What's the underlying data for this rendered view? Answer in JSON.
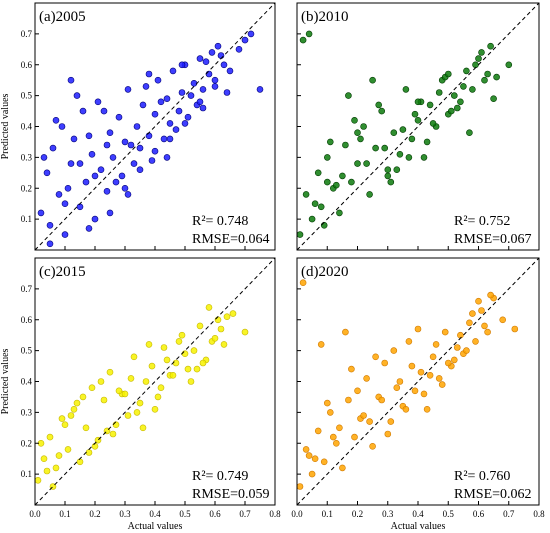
{
  "chart_data": [
    {
      "type": "scatter",
      "panel_label": "(a)2005",
      "xlabel": "",
      "ylabel": "Predicted values",
      "xlim": [
        0,
        0.8
      ],
      "ylim": [
        0,
        0.8
      ],
      "xticks": [
        "0.0",
        "0.1",
        "0.2",
        "0.3",
        "0.4",
        "0.5",
        "0.6",
        "0.7",
        "0.8"
      ],
      "yticks": [
        "0.1",
        "0.2",
        "0.3",
        "0.4",
        "0.5",
        "0.6",
        "0.7"
      ],
      "show_xtick_labels": false,
      "show_yticks": true,
      "color": "#1c1cff",
      "edge_color": "#00007a",
      "r2_text": "R²= 0.748",
      "rmse_text": "RMSE=0.064",
      "series": [
        {
          "x": [
            0.02,
            0.04,
            0.05,
            0.06,
            0.08,
            0.09,
            0.1,
            0.12,
            0.13,
            0.15,
            0.16,
            0.17,
            0.19,
            0.2,
            0.21,
            0.22,
            0.24,
            0.25,
            0.26,
            0.28,
            0.29,
            0.3,
            0.31,
            0.33,
            0.34,
            0.35,
            0.36,
            0.38,
            0.39,
            0.4,
            0.41,
            0.43,
            0.44,
            0.45,
            0.46,
            0.48,
            0.49,
            0.5,
            0.51,
            0.53,
            0.54,
            0.55,
            0.56,
            0.58,
            0.59,
            0.6,
            0.61,
            0.63,
            0.65,
            0.68,
            0.72,
            0.75,
            0.03,
            0.07,
            0.11,
            0.14,
            0.18,
            0.23,
            0.27,
            0.32,
            0.37,
            0.42,
            0.47,
            0.52,
            0.57,
            0.62,
            0.05,
            0.1,
            0.15,
            0.2,
            0.25,
            0.3,
            0.35,
            0.4,
            0.45,
            0.5,
            0.55,
            0.6,
            0.12,
            0.18,
            0.24,
            0.31,
            0.38,
            0.44,
            0.49,
            0.56,
            0.64,
            0.7
          ],
          "y": [
            0.12,
            0.25,
            0.08,
            0.33,
            0.18,
            0.4,
            0.05,
            0.28,
            0.36,
            0.14,
            0.45,
            0.22,
            0.31,
            0.1,
            0.48,
            0.26,
            0.19,
            0.38,
            0.3,
            0.43,
            0.24,
            0.35,
            0.52,
            0.28,
            0.4,
            0.33,
            0.47,
            0.37,
            0.29,
            0.44,
            0.55,
            0.36,
            0.49,
            0.41,
            0.58,
            0.45,
            0.51,
            0.6,
            0.43,
            0.54,
            0.47,
            0.62,
            0.52,
            0.57,
            0.64,
            0.55,
            0.66,
            0.6,
            0.58,
            0.65,
            0.7,
            0.52,
            0.3,
            0.42,
            0.2,
            0.5,
            0.37,
            0.45,
            0.22,
            0.34,
            0.53,
            0.48,
            0.39,
            0.5,
            0.61,
            0.63,
            0.02,
            0.15,
            0.28,
            0.24,
            0.12,
            0.2,
            0.26,
            0.32,
            0.36,
            0.41,
            0.48,
            0.53,
            0.55,
            0.07,
            0.34,
            0.18,
            0.57,
            0.3,
            0.6,
            0.46,
            0.51,
            0.68
          ]
        }
      ]
    },
    {
      "type": "scatter",
      "panel_label": "(b)2010",
      "xlabel": "",
      "ylabel": "",
      "xlim": [
        0,
        0.8
      ],
      "ylim": [
        0,
        0.8
      ],
      "xticks": [
        "0.0",
        "0.1",
        "0.2",
        "0.3",
        "0.4",
        "0.5",
        "0.6",
        "0.7",
        "0.8"
      ],
      "yticks": [
        "0.1",
        "0.2",
        "0.3",
        "0.4",
        "0.5",
        "0.6",
        "0.7"
      ],
      "show_xtick_labels": false,
      "show_yticks": false,
      "color": "#0c7a0c",
      "edge_color": "#023d02",
      "r2_text": "R²= 0.752",
      "rmse_text": "RMSE=0.067",
      "series": [
        {
          "x": [
            0.01,
            0.03,
            0.05,
            0.07,
            0.09,
            0.1,
            0.12,
            0.14,
            0.16,
            0.18,
            0.2,
            0.22,
            0.24,
            0.26,
            0.28,
            0.3,
            0.32,
            0.34,
            0.36,
            0.38,
            0.4,
            0.42,
            0.44,
            0.46,
            0.48,
            0.5,
            0.52,
            0.54,
            0.56,
            0.58,
            0.6,
            0.62,
            0.64,
            0.66,
            0.7,
            0.04,
            0.08,
            0.11,
            0.15,
            0.19,
            0.23,
            0.27,
            0.31,
            0.35,
            0.39,
            0.43,
            0.47,
            0.51,
            0.55,
            0.59,
            0.63,
            0.06,
            0.13,
            0.21,
            0.29,
            0.37,
            0.45,
            0.53,
            0.61,
            0.17,
            0.25,
            0.33,
            0.41,
            0.49,
            0.57,
            0.65,
            0.02,
            0.1,
            0.2,
            0.3,
            0.4,
            0.5
          ],
          "y": [
            0.05,
            0.18,
            0.1,
            0.25,
            0.08,
            0.3,
            0.2,
            0.12,
            0.34,
            0.22,
            0.28,
            0.4,
            0.18,
            0.33,
            0.45,
            0.26,
            0.38,
            0.31,
            0.52,
            0.36,
            0.42,
            0.3,
            0.47,
            0.4,
            0.55,
            0.44,
            0.5,
            0.48,
            0.58,
            0.52,
            0.62,
            0.55,
            0.66,
            0.56,
            0.6,
            0.7,
            0.14,
            0.35,
            0.24,
            0.42,
            0.28,
            0.47,
            0.22,
            0.39,
            0.44,
            0.35,
            0.51,
            0.45,
            0.53,
            0.6,
            0.57,
            0.15,
            0.21,
            0.36,
            0.33,
            0.3,
            0.41,
            0.46,
            0.64,
            0.5,
            0.55,
            0.26,
            0.48,
            0.56,
            0.38,
            0.49,
            0.68,
            0.22,
            0.38,
            0.24,
            0.48,
            0.57
          ],
          "_note": ""
        }
      ]
    },
    {
      "type": "scatter",
      "panel_label": "(c)2015",
      "xlabel": "Actual values",
      "ylabel": "Predicted values",
      "xlim": [
        0,
        0.8
      ],
      "ylim": [
        0,
        0.8
      ],
      "xticks": [
        "0.0",
        "0.1",
        "0.2",
        "0.3",
        "0.4",
        "0.5",
        "0.6",
        "0.7",
        "0.8"
      ],
      "yticks": [
        "0.1",
        "0.2",
        "0.3",
        "0.4",
        "0.5",
        "0.6",
        "0.7"
      ],
      "show_xtick_labels": true,
      "show_yticks": true,
      "color": "#f7f200",
      "edge_color": "#c7b800",
      "r2_text": "R²= 0.749",
      "rmse_text": "RMSE=0.059",
      "series": [
        {
          "x": [
            0.01,
            0.03,
            0.05,
            0.07,
            0.09,
            0.11,
            0.13,
            0.15,
            0.17,
            0.19,
            0.21,
            0.23,
            0.25,
            0.27,
            0.29,
            0.31,
            0.33,
            0.35,
            0.37,
            0.39,
            0.41,
            0.43,
            0.45,
            0.47,
            0.49,
            0.51,
            0.53,
            0.55,
            0.57,
            0.59,
            0.61,
            0.63,
            0.66,
            0.7,
            0.02,
            0.06,
            0.1,
            0.14,
            0.18,
            0.22,
            0.26,
            0.3,
            0.34,
            0.38,
            0.42,
            0.46,
            0.5,
            0.54,
            0.58,
            0.62,
            0.04,
            0.12,
            0.2,
            0.28,
            0.36,
            0.44,
            0.52,
            0.6,
            0.08,
            0.16,
            0.24,
            0.32,
            0.4,
            0.48,
            0.56,
            0.64
          ],
          "y": [
            0.08,
            0.15,
            0.22,
            0.12,
            0.28,
            0.18,
            0.31,
            0.14,
            0.25,
            0.38,
            0.21,
            0.34,
            0.43,
            0.26,
            0.36,
            0.29,
            0.48,
            0.33,
            0.4,
            0.45,
            0.35,
            0.51,
            0.42,
            0.46,
            0.55,
            0.44,
            0.5,
            0.58,
            0.47,
            0.53,
            0.6,
            0.52,
            0.62,
            0.56,
            0.2,
            0.06,
            0.26,
            0.33,
            0.17,
            0.4,
            0.23,
            0.36,
            0.3,
            0.52,
            0.38,
            0.42,
            0.49,
            0.44,
            0.64,
            0.57,
            0.11,
            0.29,
            0.19,
            0.37,
            0.25,
            0.47,
            0.4,
            0.54,
            0.16,
            0.35,
            0.24,
            0.41,
            0.31,
            0.53,
            0.46,
            0.61
          ]
        }
      ]
    },
    {
      "type": "scatter",
      "panel_label": "(d)2020",
      "xlabel": "Actual values",
      "ylabel": "",
      "xlim": [
        0,
        0.8
      ],
      "ylim": [
        0,
        0.8
      ],
      "xticks": [
        "0.0",
        "0.1",
        "0.2",
        "0.3",
        "0.4",
        "0.5",
        "0.6",
        "0.7",
        "0.8"
      ],
      "yticks": [
        "0.1",
        "0.2",
        "0.3",
        "0.4",
        "0.5",
        "0.6",
        "0.7"
      ],
      "show_xtick_labels": true,
      "show_yticks": false,
      "color": "#ffa500",
      "edge_color": "#d17a00",
      "r2_text": "R²= 0.760",
      "rmse_text": "RMSE=0.062",
      "series": [
        {
          "x": [
            0.01,
            0.03,
            0.05,
            0.07,
            0.09,
            0.11,
            0.13,
            0.15,
            0.17,
            0.19,
            0.21,
            0.23,
            0.25,
            0.27,
            0.29,
            0.31,
            0.33,
            0.35,
            0.37,
            0.39,
            0.41,
            0.43,
            0.45,
            0.47,
            0.49,
            0.51,
            0.53,
            0.55,
            0.57,
            0.59,
            0.61,
            0.63,
            0.65,
            0.68,
            0.72,
            0.02,
            0.06,
            0.1,
            0.14,
            0.18,
            0.22,
            0.26,
            0.3,
            0.34,
            0.38,
            0.42,
            0.46,
            0.5,
            0.54,
            0.58,
            0.62,
            0.04,
            0.12,
            0.2,
            0.28,
            0.36,
            0.44,
            0.52,
            0.6,
            0.08,
            0.16,
            0.24,
            0.32,
            0.4,
            0.48,
            0.56,
            0.64
          ],
          "y": [
            0.06,
            0.18,
            0.1,
            0.24,
            0.14,
            0.3,
            0.2,
            0.12,
            0.34,
            0.22,
            0.28,
            0.41,
            0.19,
            0.35,
            0.46,
            0.27,
            0.38,
            0.32,
            0.53,
            0.37,
            0.43,
            0.31,
            0.48,
            0.41,
            0.56,
            0.45,
            0.51,
            0.49,
            0.59,
            0.53,
            0.63,
            0.56,
            0.67,
            0.6,
            0.57,
            0.72,
            0.15,
            0.33,
            0.25,
            0.44,
            0.29,
            0.48,
            0.23,
            0.4,
            0.45,
            0.36,
            0.52,
            0.46,
            0.55,
            0.62,
            0.58,
            0.16,
            0.22,
            0.37,
            0.34,
            0.31,
            0.42,
            0.47,
            0.66,
            0.52,
            0.56,
            0.27,
            0.5,
            0.57,
            0.39,
            0.5,
            0.68
          ]
        }
      ]
    }
  ]
}
